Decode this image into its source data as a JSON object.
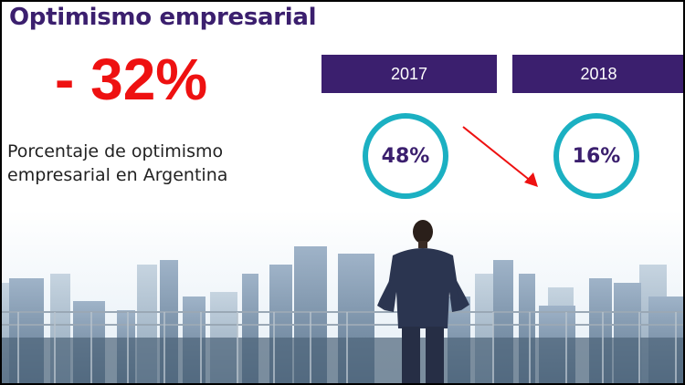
{
  "title": "Optimismo empresarial",
  "headline": "- 32%",
  "description_line1": "Porcentaje de optimismo",
  "description_line2": "empresarial en Argentina",
  "colors": {
    "brand": "#3b1f6e",
    "accent_red": "#ee1111",
    "ring": "#1bb0c2"
  },
  "chart_data": {
    "type": "table",
    "categories": [
      "2017",
      "2018"
    ],
    "values": [
      48,
      16
    ],
    "labels": [
      "48%",
      "16%"
    ],
    "change": "- 32%"
  }
}
